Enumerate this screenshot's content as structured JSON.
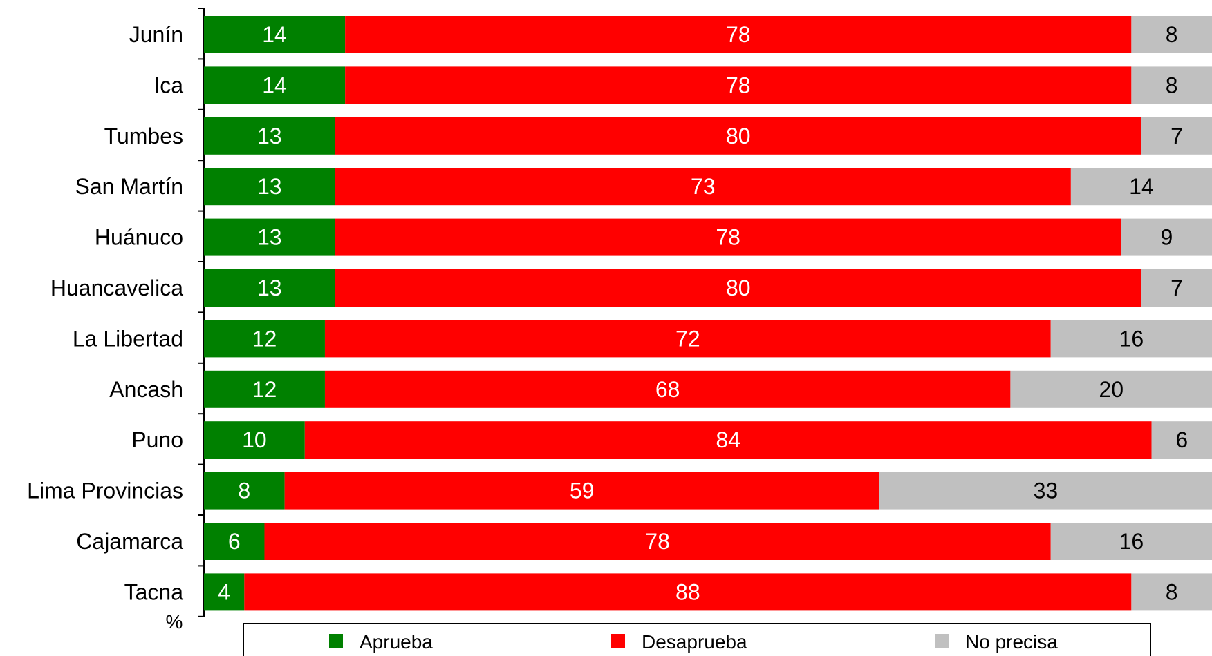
{
  "chart_data": {
    "type": "bar",
    "orientation": "horizontal",
    "stacked": true,
    "unit_label": "%",
    "categories": [
      "Junín",
      "Ica",
      "Tumbes",
      "San Martín",
      "Huánuco",
      "Huancavelica",
      "La Libertad",
      "Ancash",
      "Puno",
      "Lima Provincias",
      "Cajamarca",
      "Tacna"
    ],
    "series": [
      {
        "name": "Aprueba",
        "color": "#008000",
        "label_color": "#ffffff",
        "values": [
          14,
          14,
          13,
          13,
          13,
          13,
          12,
          12,
          10,
          8,
          6,
          4
        ]
      },
      {
        "name": "Desaprueba",
        "color": "#ff0000",
        "label_color": "#ffffff",
        "values": [
          78,
          78,
          80,
          73,
          78,
          80,
          72,
          68,
          84,
          59,
          78,
          88
        ]
      },
      {
        "name": "No precisa",
        "color": "#c0c0c0",
        "label_color": "#000000",
        "values": [
          8,
          8,
          7,
          14,
          9,
          7,
          16,
          20,
          6,
          33,
          16,
          8
        ]
      }
    ],
    "xlim": [
      0,
      100
    ],
    "grid": false,
    "legend_position": "bottom"
  }
}
